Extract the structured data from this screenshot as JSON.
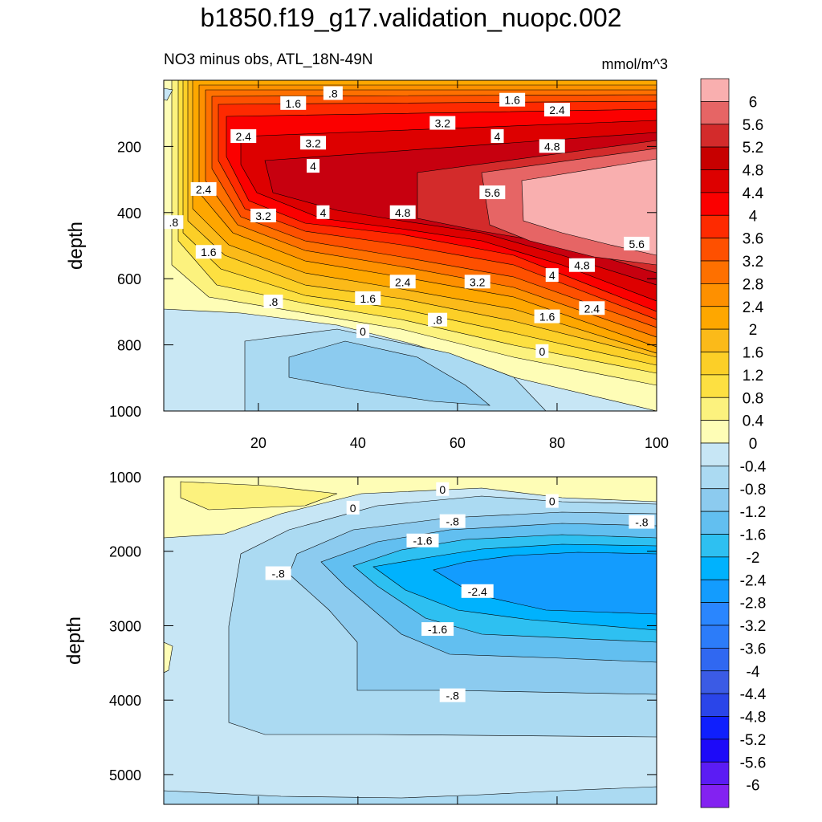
{
  "title": "b1850.f19_g17.validation_nuopc.002",
  "subtitle": "NO3 minus obs, ATL_18N-49N",
  "units": "mmol/m^3",
  "chart_data": {
    "type": "contour",
    "field": "NO3 minus obs",
    "region": "ATL_18N-49N",
    "xaxis_ticks": [
      20,
      40,
      60,
      80,
      100
    ],
    "panels": [
      {
        "name": "upper",
        "ylabel": "depth",
        "ylim": [
          0,
          1000
        ],
        "yticks": [
          200,
          400,
          600,
          800,
          1000
        ],
        "contour_labels": [
          {
            "text": ".8",
            "x": 35,
            "y": 40
          },
          {
            "text": "1.6",
            "x": 27,
            "y": 70
          },
          {
            "text": "1.6",
            "x": 71,
            "y": 60
          },
          {
            "text": "2.4",
            "x": 80,
            "y": 90
          },
          {
            "text": "3.2",
            "x": 57,
            "y": 130
          },
          {
            "text": "4",
            "x": 68,
            "y": 170
          },
          {
            "text": "4.8",
            "x": 79,
            "y": 200
          },
          {
            "text": "2.4",
            "x": 17,
            "y": 170
          },
          {
            "text": "3.2",
            "x": 31,
            "y": 190
          },
          {
            "text": "4",
            "x": 31,
            "y": 260
          },
          {
            "text": "2.4",
            "x": 9,
            "y": 330
          },
          {
            "text": "5.6",
            "x": 67,
            "y": 340
          },
          {
            "text": "4",
            "x": 33,
            "y": 400
          },
          {
            "text": "4.8",
            "x": 49,
            "y": 400
          },
          {
            "text": "3.2",
            "x": 21,
            "y": 410
          },
          {
            "text": ".8",
            "x": 3,
            "y": 430
          },
          {
            "text": "1.6",
            "x": 10,
            "y": 520
          },
          {
            "text": "5.6",
            "x": 96,
            "y": 495
          },
          {
            "text": "4.8",
            "x": 85,
            "y": 560
          },
          {
            "text": "4",
            "x": 79,
            "y": 590
          },
          {
            "text": "2.4",
            "x": 49,
            "y": 610
          },
          {
            "text": "3.2",
            "x": 64,
            "y": 610
          },
          {
            "text": "1.6",
            "x": 42,
            "y": 660
          },
          {
            "text": ".8",
            "x": 23,
            "y": 670
          },
          {
            "text": "1.6",
            "x": 78,
            "y": 715
          },
          {
            "text": "2.4",
            "x": 87,
            "y": 690
          },
          {
            "text": ".8",
            "x": 56,
            "y": 725
          },
          {
            "text": "0",
            "x": 41,
            "y": 760
          },
          {
            "text": "0",
            "x": 77,
            "y": 820
          }
        ]
      },
      {
        "name": "lower",
        "ylabel": "depth",
        "ylim": [
          1000,
          5400
        ],
        "yticks": [
          1000,
          2000,
          3000,
          4000,
          5000
        ],
        "contour_labels": [
          {
            "text": "0",
            "x": 57,
            "y": 1170
          },
          {
            "text": "0",
            "x": 79,
            "y": 1330
          },
          {
            "text": "0",
            "x": 39,
            "y": 1420
          },
          {
            "text": "-.8",
            "x": 59,
            "y": 1600
          },
          {
            "text": "-.8",
            "x": 97,
            "y": 1610
          },
          {
            "text": "-1.6",
            "x": 53,
            "y": 1860
          },
          {
            "text": "-.8",
            "x": 24,
            "y": 2300
          },
          {
            "text": "-2.4",
            "x": 64,
            "y": 2540
          },
          {
            "text": "-1.6",
            "x": 56,
            "y": 3050
          },
          {
            "text": "-.8",
            "x": 59,
            "y": 3940
          }
        ]
      }
    ],
    "colorbar": {
      "levels": [
        "6",
        "5.6",
        "5.2",
        "4.8",
        "4.4",
        "4",
        "3.6",
        "3.2",
        "2.8",
        "2.4",
        "2",
        "1.6",
        "1.2",
        "0.8",
        "0.4",
        "0",
        "-0.4",
        "-0.8",
        "-1.2",
        "-1.6",
        "-2",
        "-2.4",
        "-2.8",
        "-3.2",
        "-3.6",
        "-4",
        "-4.4",
        "-4.8",
        "-5.2",
        "-5.6",
        "-6"
      ],
      "colors": [
        "#f9afaf",
        "#e66565",
        "#d32b2b",
        "#c70000",
        "#dd0000",
        "#fb0000",
        "#fe2a00",
        "#fe5000",
        "#fe7000",
        "#fe9000",
        "#fea700",
        "#fbba19",
        "#fccf27",
        "#fde041",
        "#fcf27e",
        "#fefdb6",
        "#c7e6f5",
        "#abdaf2",
        "#8ccbef",
        "#62bff0",
        "#2ec0f1",
        "#00b2fd",
        "#139cfe",
        "#2a86fe",
        "#2c7cf9",
        "#3068f1",
        "#3b5be5",
        "#2a45e9",
        "#0f1ffd",
        "#1d0af8",
        "#5b1cf4",
        "#8322f1"
      ]
    }
  }
}
